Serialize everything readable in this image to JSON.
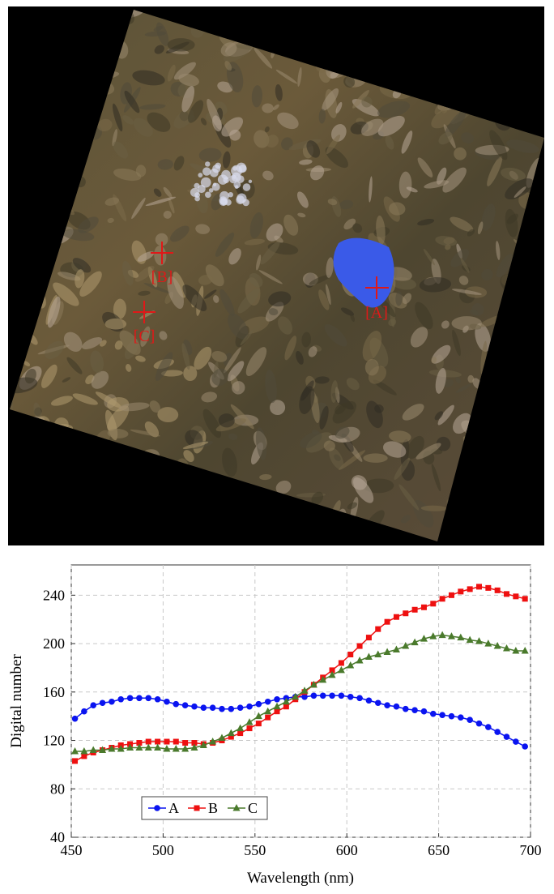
{
  "image": {
    "markers": [
      {
        "label": "[A]"
      },
      {
        "label": "[B]"
      },
      {
        "label": "[C]"
      }
    ]
  },
  "chart_data": {
    "type": "line",
    "x_label": "Wavelength (nm)",
    "y_label": "Digital number",
    "x": [
      452,
      457,
      462,
      467,
      472,
      477,
      482,
      487,
      492,
      497,
      502,
      507,
      512,
      517,
      522,
      527,
      532,
      537,
      542,
      547,
      552,
      557,
      562,
      567,
      572,
      577,
      582,
      587,
      592,
      597,
      602,
      607,
      612,
      617,
      622,
      627,
      632,
      637,
      642,
      647,
      652,
      657,
      662,
      667,
      672,
      677,
      682,
      687,
      692,
      697
    ],
    "series": [
      {
        "name": "A",
        "color": "#0a14f0",
        "marker": "circle",
        "values": [
          138,
          144,
          149,
          151,
          152,
          154,
          155,
          155,
          155,
          154,
          152,
          150,
          149,
          148,
          147,
          147,
          146,
          146,
          147,
          148,
          150,
          152,
          154,
          155,
          156,
          156,
          157,
          157,
          157,
          157,
          156,
          155,
          153,
          151,
          149,
          148,
          146,
          145,
          144,
          142,
          141,
          140,
          139,
          137,
          134,
          131,
          127,
          123,
          119,
          115
        ]
      },
      {
        "name": "B",
        "color": "#ee1010",
        "marker": "square",
        "values": [
          103,
          107,
          110,
          112,
          114,
          116,
          117,
          118,
          119,
          119,
          119,
          119,
          118,
          118,
          117,
          118,
          120,
          123,
          126,
          130,
          134,
          139,
          144,
          148,
          154,
          160,
          166,
          172,
          178,
          184,
          191,
          198,
          205,
          212,
          218,
          222,
          225,
          228,
          230,
          233,
          237,
          240,
          243,
          245,
          247,
          246,
          244,
          241,
          239,
          237
        ]
      },
      {
        "name": "C",
        "color": "#4a7a2c",
        "marker": "triangle",
        "values": [
          111,
          111,
          112,
          112,
          113,
          113,
          114,
          114,
          114,
          114,
          113,
          113,
          113,
          114,
          116,
          119,
          122,
          126,
          130,
          135,
          140,
          144,
          148,
          152,
          156,
          161,
          166,
          170,
          174,
          178,
          182,
          186,
          189,
          191,
          193,
          195,
          198,
          201,
          204,
          206,
          207,
          206,
          205,
          203,
          202,
          200,
          198,
          196,
          194,
          194
        ]
      }
    ],
    "xlim": [
      450,
      700
    ],
    "xticks": [
      450,
      500,
      550,
      600,
      650,
      700
    ],
    "ylim": [
      40,
      265
    ],
    "yticks": [
      40,
      80,
      120,
      160,
      200,
      240
    ],
    "grid": true,
    "legend_loc": "lower left"
  }
}
